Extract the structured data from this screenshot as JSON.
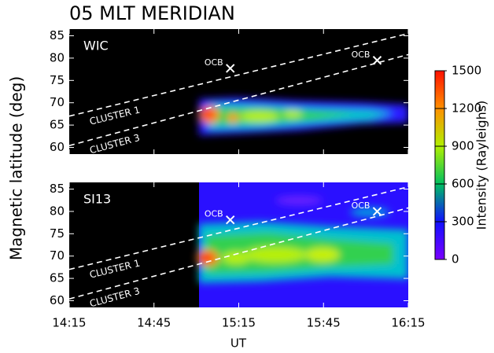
{
  "chart_data": {
    "type": "heatmap",
    "title": "05 MLT MERIDIAN",
    "ylabel": "Magnetic latitude (deg)",
    "xlabel": "UT",
    "xlim": [
      "14:15",
      "16:15"
    ],
    "xticks": [
      "14:15",
      "14:45",
      "15:15",
      "15:45",
      "16:15"
    ],
    "ylim": [
      58.5,
      86.5
    ],
    "yticks": [
      60,
      65,
      70,
      75,
      80,
      85
    ],
    "panels": [
      {
        "label": "WIC",
        "series": [
          {
            "name": "CLUSTER 1",
            "color": "#ffffff",
            "x": [
              "14:15",
              "16:15"
            ],
            "values": [
              67.0,
              85.5
            ]
          },
          {
            "name": "CLUSTER 3",
            "color": "#ffffff",
            "x": [
              "14:15",
              "16:15"
            ],
            "values": [
              60.4,
              80.8
            ]
          }
        ],
        "markers": [
          {
            "label": "OCB",
            "x": "15:12",
            "y": 77.7
          },
          {
            "label": "OCB",
            "x": "16:04",
            "y": 79.5
          }
        ]
      },
      {
        "label": "SI13",
        "series": [
          {
            "name": "CLUSTER 1",
            "color": "#ffffff",
            "x": [
              "14:15",
              "16:15"
            ],
            "values": [
              67.0,
              85.5
            ]
          },
          {
            "name": "CLUSTER 3",
            "color": "#ffffff",
            "x": [
              "14:15",
              "16:15"
            ],
            "values": [
              60.4,
              80.8
            ]
          }
        ],
        "markers": [
          {
            "label": "OCB",
            "x": "15:12",
            "y": 78.1
          },
          {
            "label": "OCB",
            "x": "16:04",
            "y": 80.0
          }
        ]
      }
    ],
    "colorbar": {
      "label": "Intensity (Rayleighs)",
      "lim": [
        0,
        1500
      ],
      "ticks": [
        0,
        300,
        600,
        900,
        1200,
        1500
      ],
      "colors": [
        "#7a00ff",
        "#1010ff",
        "#00c060",
        "#b0f000",
        "#ff9000",
        "#ff1000"
      ]
    }
  }
}
